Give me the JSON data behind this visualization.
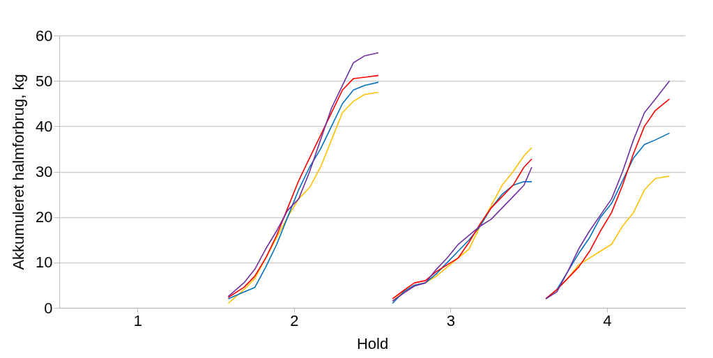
{
  "chart_data": {
    "type": "line",
    "xlabel": "Hold",
    "ylabel": "Akkumuleret halmforbrug, kg",
    "x": [
      1.58,
      1.68,
      1.75,
      1.82,
      1.89,
      1.96,
      2.03,
      2.1,
      2.17,
      2.24,
      2.31,
      2.38,
      2.45,
      2.54,
      2.58,
      2.63,
      2.7,
      2.77,
      2.84,
      2.91,
      2.98,
      3.05,
      3.12,
      3.19,
      3.26,
      3.33,
      3.4,
      3.47,
      3.52,
      3.56,
      3.61,
      3.68,
      3.75,
      3.82,
      3.89,
      3.96,
      4.03,
      4.1,
      4.17,
      4.24,
      4.31,
      4.4
    ],
    "series": [
      {
        "color": "#ffc000",
        "values": [
          1,
          4,
          6.5,
          11,
          15.5,
          20,
          24,
          26.5,
          31,
          37,
          43,
          45.5,
          47,
          47.5,
          null,
          1.5,
          3.5,
          5,
          5.5,
          7,
          9,
          11,
          13,
          18,
          22.5,
          27,
          30,
          33.5,
          35.3,
          null,
          2,
          4,
          6.5,
          9.5,
          11,
          12.5,
          14,
          18,
          21,
          26,
          28.5,
          29
        ]
      },
      {
        "color": "#0070c0",
        "values": [
          2,
          3.5,
          4.5,
          9,
          14,
          20,
          26,
          31,
          35,
          40,
          45,
          48,
          49,
          49.7,
          null,
          1,
          3.5,
          5,
          5.5,
          7.5,
          10,
          12.5,
          15,
          18,
          22,
          25,
          27,
          27.8,
          27.8,
          null,
          2,
          4,
          8,
          12,
          15.5,
          20,
          23,
          28,
          33,
          36,
          37,
          38.5
        ]
      },
      {
        "color": "#ff0000",
        "values": [
          2.3,
          4.5,
          7,
          11,
          16,
          22,
          28,
          33,
          38,
          43,
          48,
          50.5,
          50.8,
          51.2,
          null,
          2,
          3.8,
          5.5,
          6,
          8,
          9.5,
          11,
          14.5,
          18.5,
          22,
          24.5,
          27,
          31,
          32.8,
          null,
          2,
          4,
          6.5,
          9,
          12.5,
          17,
          21,
          27,
          34,
          40,
          43.5,
          46
        ]
      },
      {
        "color": "#7030a0",
        "values": [
          2.5,
          5.5,
          8.5,
          13,
          17,
          21.5,
          24,
          30,
          37,
          44,
          49,
          54,
          55.5,
          56.2,
          null,
          1.5,
          3.2,
          4.8,
          5.5,
          8.5,
          11,
          14,
          16,
          18,
          19.5,
          22,
          24.5,
          27,
          31,
          null,
          2,
          3.5,
          8,
          13,
          17,
          20.5,
          24,
          30,
          37,
          43,
          46,
          50
        ]
      }
    ],
    "xlim": [
      0.5,
      4.5
    ],
    "xticks": [
      1,
      2,
      3,
      4
    ],
    "ylim": [
      0,
      60
    ],
    "yticks": [
      0,
      10,
      20,
      30,
      40,
      50,
      60
    ],
    "grid": "y",
    "marker": "none",
    "line_style": "solid"
  }
}
